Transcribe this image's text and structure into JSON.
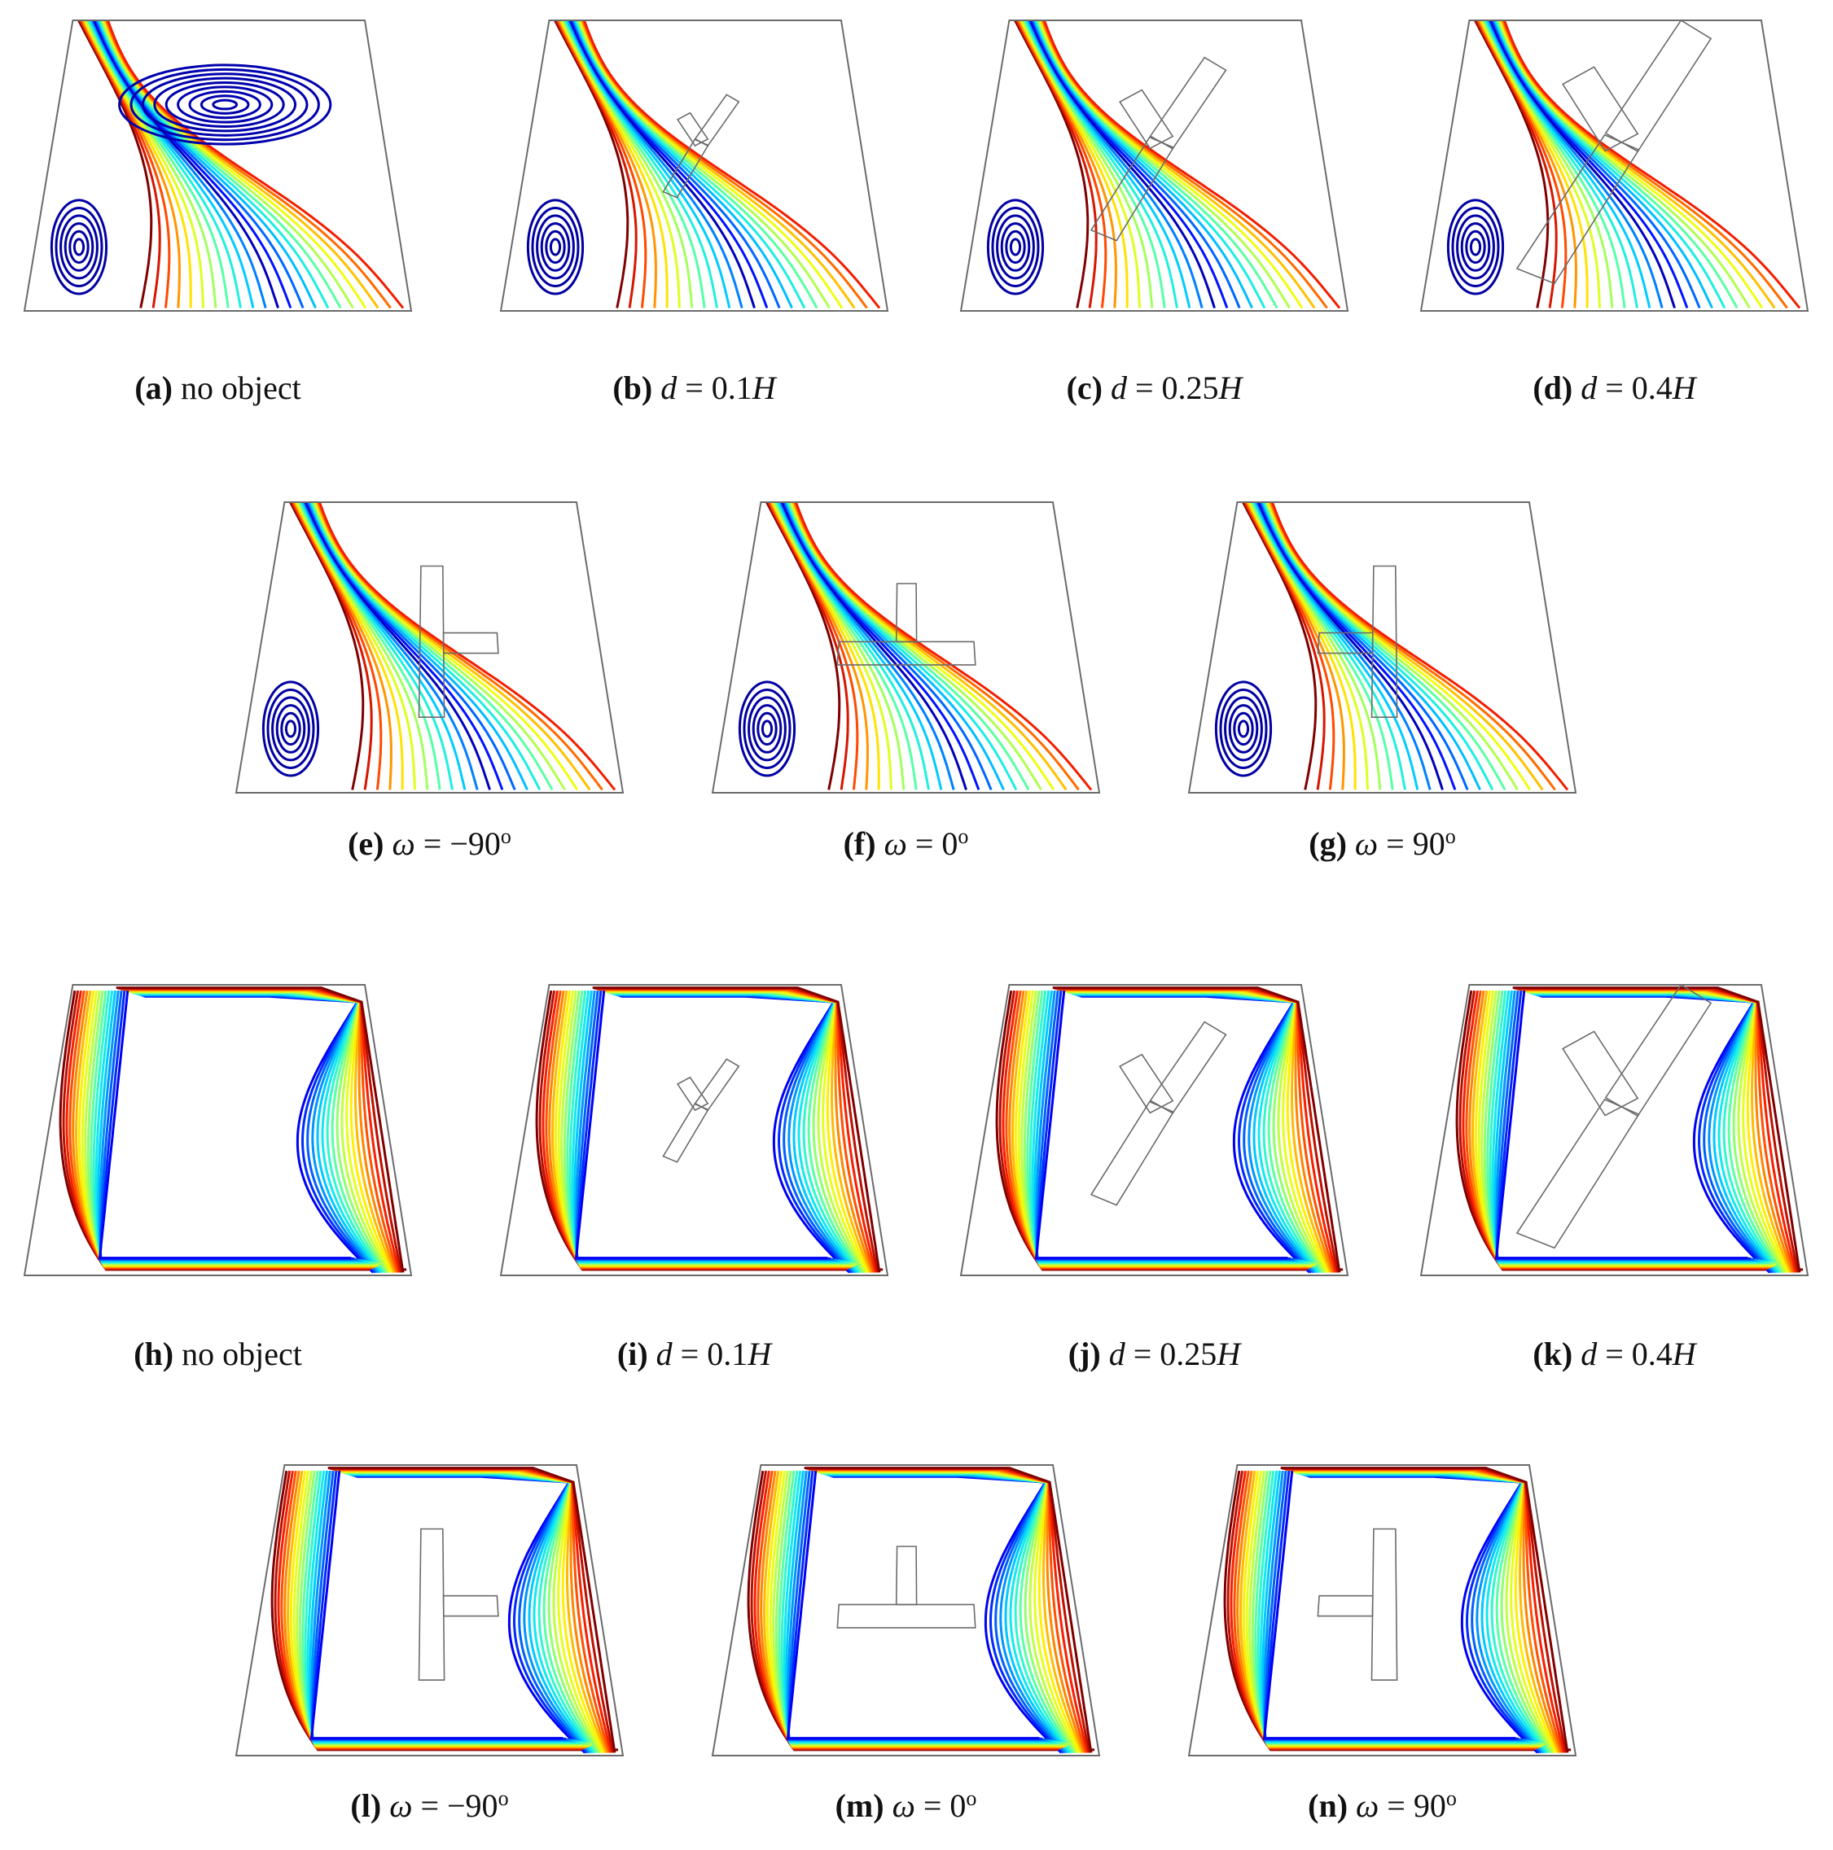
{
  "panels": [
    {
      "id": "a",
      "label": "(a)",
      "text": "no object",
      "kind": "stream",
      "object": "none"
    },
    {
      "id": "b",
      "label": "(b)",
      "var": "d",
      "rel": " = 0.1",
      "unit": "H",
      "kind": "stream",
      "object": "y-small"
    },
    {
      "id": "c",
      "label": "(c)",
      "var": "d",
      "rel": " = 0.25",
      "unit": "H",
      "kind": "stream",
      "object": "y-mid"
    },
    {
      "id": "d",
      "label": "(d)",
      "var": "d",
      "rel": " = 0.4",
      "unit": "H",
      "kind": "stream",
      "object": "y-large"
    },
    {
      "id": "e",
      "label": "(e)",
      "var": "ω",
      "rel": " = −90",
      "sup": "o",
      "kind": "stream",
      "object": "t-m90"
    },
    {
      "id": "f",
      "label": "(f)",
      "var": "ω",
      "rel": " = 0",
      "sup": "o",
      "kind": "stream",
      "object": "t-0"
    },
    {
      "id": "g",
      "label": "(g)",
      "var": "ω",
      "rel": " = 90",
      "sup": "o",
      "kind": "stream",
      "object": "t-90"
    },
    {
      "id": "h",
      "label": "(h)",
      "text": "no object",
      "kind": "iso",
      "object": "none"
    },
    {
      "id": "i",
      "label": "(i)",
      "var": "d",
      "rel": " = 0.1",
      "unit": "H",
      "kind": "iso",
      "object": "y-small"
    },
    {
      "id": "j",
      "label": "(j)",
      "var": "d",
      "rel": " = 0.25",
      "unit": "H",
      "kind": "iso",
      "object": "y-mid"
    },
    {
      "id": "k",
      "label": "(k)",
      "var": "d",
      "rel": " = 0.4",
      "unit": "H",
      "kind": "iso",
      "object": "y-large"
    },
    {
      "id": "l",
      "label": "(l)",
      "var": "ω",
      "rel": " = −90",
      "sup": "o",
      "kind": "iso",
      "object": "t-m90"
    },
    {
      "id": "m",
      "label": "(m)",
      "var": "ω",
      "rel": " = 0",
      "sup": "o",
      "kind": "iso",
      "object": "t-0"
    },
    {
      "id": "n",
      "label": "(n)",
      "var": "ω",
      "rel": " = 90",
      "sup": "o",
      "kind": "iso",
      "object": "t-90"
    }
  ],
  "colors": {
    "colormap": [
      "#00008f",
      "#0000ff",
      "#0070ff",
      "#00dfff",
      "#40ffbf",
      "#b0ff50",
      "#ffff00",
      "#ff9000",
      "#ff2000",
      "#800000"
    ],
    "cavity_outline": "#6b6b6b"
  }
}
